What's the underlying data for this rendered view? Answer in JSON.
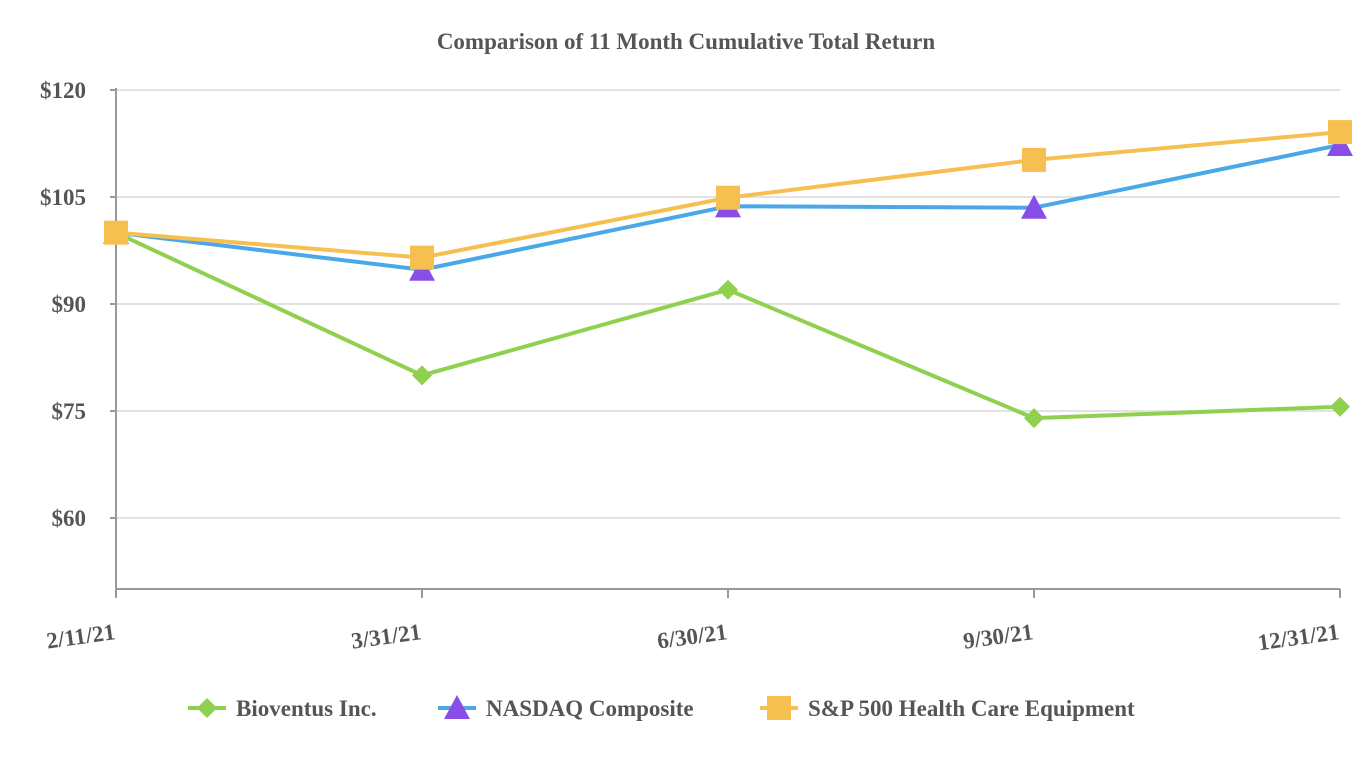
{
  "chart_data": {
    "type": "line",
    "title": "Comparison of 11 Month Cumulative Total Return",
    "xlabel": "",
    "ylabel": "",
    "categories": [
      "2/11/21",
      "3/31/21",
      "6/30/21",
      "9/30/21",
      "12/31/21"
    ],
    "y_ticks": [
      60,
      75,
      90,
      105,
      120
    ],
    "y_tick_labels": [
      "$60",
      "$75",
      "$90",
      "$105",
      "$120"
    ],
    "ylim": [
      50,
      120
    ],
    "grid": true,
    "legend_position": "bottom",
    "series": [
      {
        "name": "Bioventus Inc.",
        "color": "#8fd14f",
        "marker": "diamond",
        "values": [
          100.0,
          80.0,
          92.0,
          74.0,
          75.6
        ]
      },
      {
        "name": "NASDAQ Composite",
        "color": "#4aa8e8",
        "marker": "triangle",
        "marker_color": "#8a4ee8",
        "values": [
          100.0,
          94.8,
          103.7,
          103.5,
          112.3
        ]
      },
      {
        "name": "S&P 500 Health Care Equipment",
        "color": "#f5c04f",
        "marker": "square",
        "values": [
          100.0,
          96.5,
          104.9,
          110.2,
          114.1
        ]
      }
    ]
  }
}
